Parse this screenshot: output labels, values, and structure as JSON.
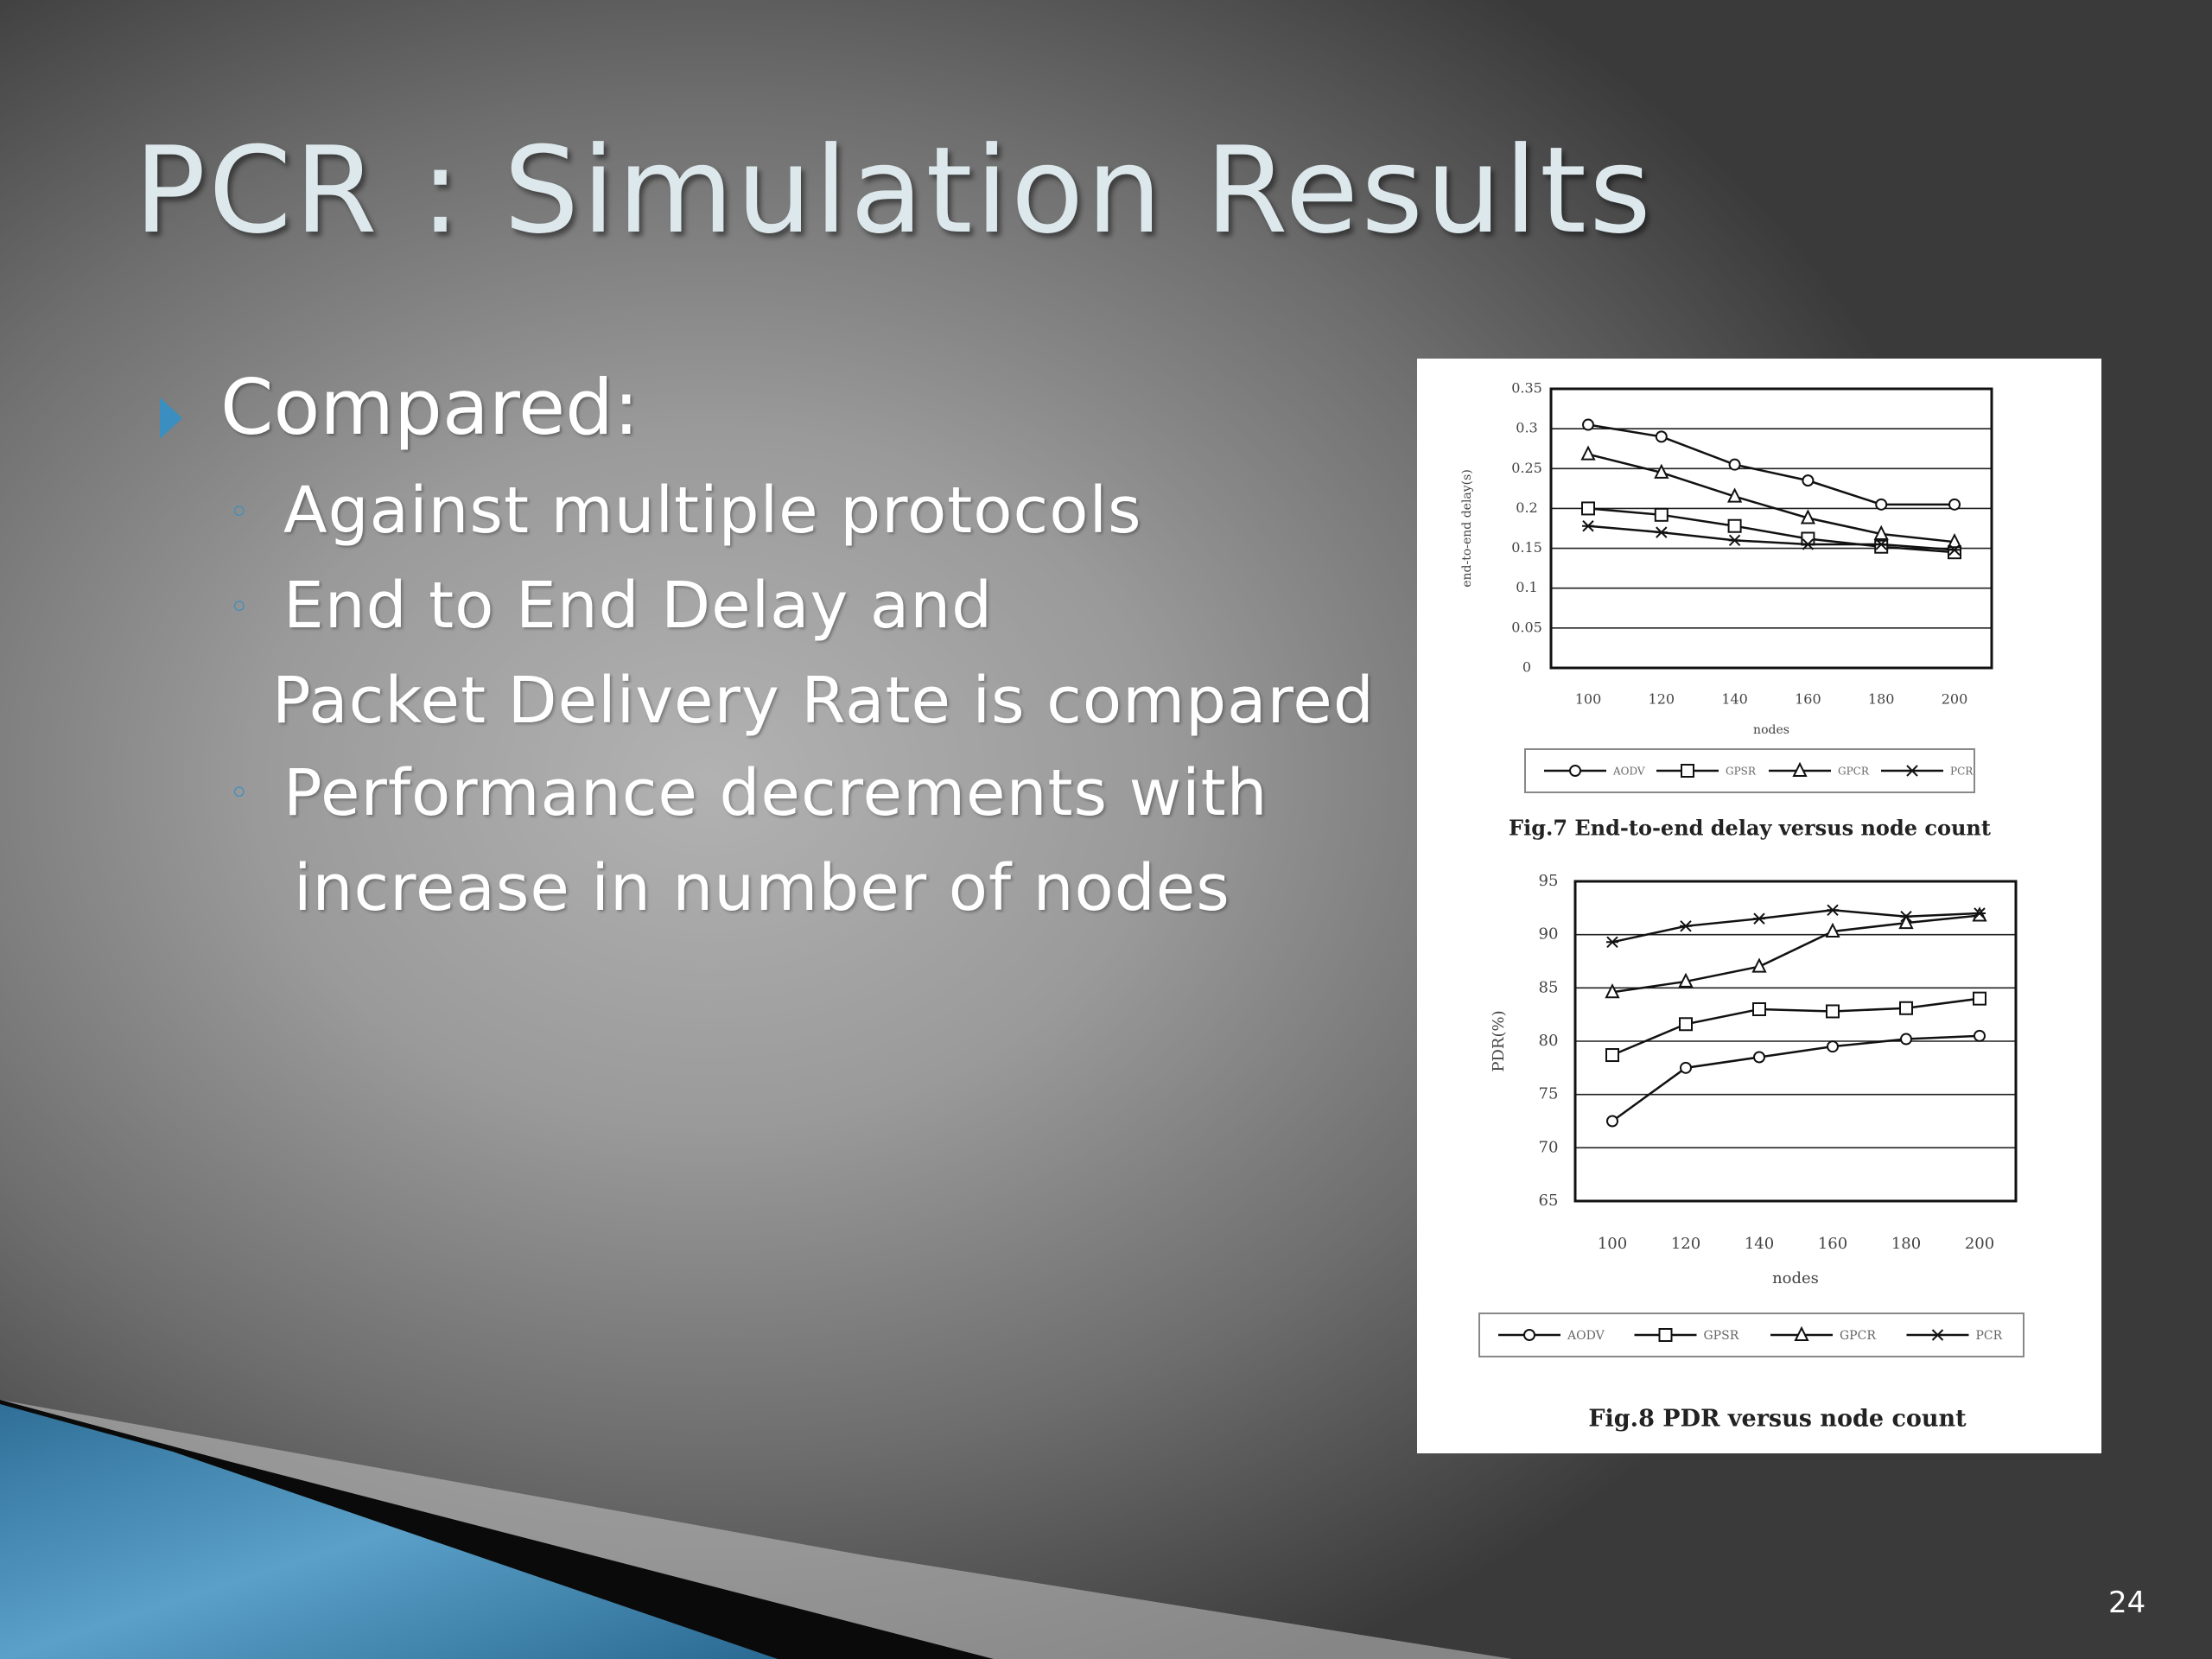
{
  "slide": {
    "title": "PCR : Simulation Results",
    "bullets": {
      "main": "Compared:",
      "sub1": "Against multiple protocols",
      "sub2_line1": "End to End Delay and",
      "sub2_line2": "Packet Delivery Rate is compared",
      "sub3_line1": "Performance decrements with",
      "sub3_line2": "increase in number of nodes"
    },
    "page_number": "24",
    "colors": {
      "title": "#dde8ec",
      "bullet_accent": "#3a8fc0",
      "swoosh_blue": "#3f8cb8"
    }
  },
  "chart_data": [
    {
      "type": "line",
      "caption": "Fig.7 End-to-end delay versus node count",
      "xlabel": "nodes",
      "ylabel": "end-to-end delay(s)",
      "x": [
        100,
        120,
        140,
        160,
        180,
        200
      ],
      "xtick_labels": [
        "100",
        "120",
        "140",
        "160",
        "180",
        "200"
      ],
      "ylim": [
        0,
        0.35
      ],
      "yticks": [
        0,
        0.05,
        0.1,
        0.15,
        0.2,
        0.25,
        0.3,
        0.35
      ],
      "ytick_labels": [
        "0",
        "0.05",
        "0.1",
        "0.15",
        "0.2",
        "0.25",
        "0.3",
        "0.35"
      ],
      "grid": true,
      "legend_position": "bottom",
      "series": [
        {
          "name": "AODV",
          "marker": "circle",
          "values": [
            0.305,
            0.29,
            0.255,
            0.235,
            0.205,
            0.205
          ]
        },
        {
          "name": "GPSR",
          "marker": "square",
          "values": [
            0.2,
            0.192,
            0.178,
            0.162,
            0.152,
            0.145
          ]
        },
        {
          "name": "GPCR",
          "marker": "triangle",
          "values": [
            0.268,
            0.245,
            0.215,
            0.188,
            0.168,
            0.158
          ]
        },
        {
          "name": "PCR",
          "marker": "star",
          "values": [
            0.178,
            0.17,
            0.16,
            0.155,
            0.155,
            0.148
          ]
        }
      ]
    },
    {
      "type": "line",
      "caption": "Fig.8 PDR versus node count",
      "xlabel": "nodes",
      "ylabel": "PDR(%)",
      "x": [
        100,
        120,
        140,
        160,
        180,
        200
      ],
      "xtick_labels": [
        "100",
        "120",
        "140",
        "160",
        "180",
        "200"
      ],
      "ylim": [
        65,
        95
      ],
      "yticks": [
        65,
        70,
        75,
        80,
        85,
        90,
        95
      ],
      "ytick_labels": [
        "65",
        "70",
        "75",
        "80",
        "85",
        "90",
        "95"
      ],
      "grid": true,
      "legend_position": "bottom",
      "series": [
        {
          "name": "AODV",
          "marker": "circle",
          "values": [
            72.5,
            77.5,
            78.5,
            79.5,
            80.2,
            80.5
          ]
        },
        {
          "name": "GPSR",
          "marker": "square",
          "values": [
            78.7,
            81.6,
            83,
            82.8,
            83.1,
            84
          ]
        },
        {
          "name": "GPCR",
          "marker": "triangle",
          "values": [
            84.6,
            85.6,
            87,
            90.3,
            91.1,
            91.8
          ]
        },
        {
          "name": "PCR",
          "marker": "star",
          "values": [
            89.3,
            90.8,
            91.5,
            92.3,
            91.7,
            92
          ]
        }
      ]
    }
  ]
}
